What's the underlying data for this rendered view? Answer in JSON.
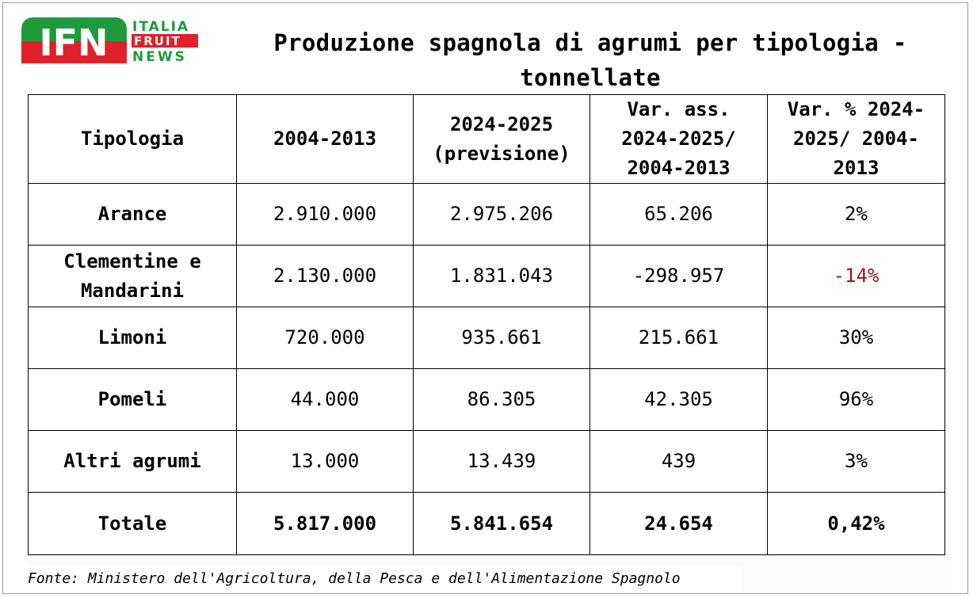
{
  "logo": {
    "letters": "IFN",
    "line1": "ITALIA",
    "line2": "FRUIT",
    "line3": "NEWS",
    "colors": {
      "green": "#1e9a3c",
      "red": "#e0202a",
      "text": "#1e9a3c"
    }
  },
  "title": "Produzione spagnola di agrumi per tipologia - tonnellate",
  "table": {
    "headers": [
      "Tipologia",
      "2004-2013",
      "2024-2025 (previsione)",
      "Var. ass. 2024-2025/ 2004-2013",
      "Var. % 2024-2025/ 2004-2013"
    ],
    "rows": [
      {
        "tipologia": "Arance",
        "p2004": "2.910.000",
        "p2024": "2.975.206",
        "var_ass": "65.206",
        "var_pct": "2%"
      },
      {
        "tipologia": "Clementine e Mandarini",
        "p2004": "2.130.000",
        "p2024": "1.831.043",
        "var_ass": "-298.957",
        "var_pct": "-14%"
      },
      {
        "tipologia": "Limoni",
        "p2004": "720.000",
        "p2024": "935.661",
        "var_ass": "215.661",
        "var_pct": "30%"
      },
      {
        "tipologia": "Pomeli",
        "p2004": "44.000",
        "p2024": "86.305",
        "var_ass": "42.305",
        "var_pct": "96%"
      },
      {
        "tipologia": "Altri agrumi",
        "p2004": "13.000",
        "p2024": "13.439",
        "var_ass": "439",
        "var_pct": "3%"
      }
    ],
    "total": {
      "tipologia": "Totale",
      "p2004": "5.817.000",
      "p2024": "5.841.654",
      "var_ass": "24.654",
      "var_pct": "0,42%"
    },
    "negative_color": "#a31515"
  },
  "source": "Fonte: Ministero dell'Agricoltura, della Pesca e dell'Alimentazione Spagnolo"
}
